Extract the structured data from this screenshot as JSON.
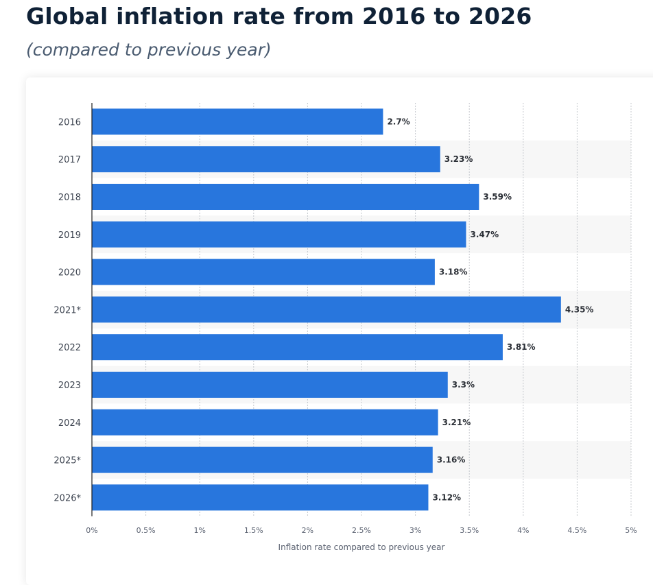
{
  "title": "Global inflation rate from 2016 to 2026",
  "subtitle": "(compared to previous year)",
  "colors": {
    "bar": "#2876dd",
    "band": "#f7f7f7",
    "grid": "#c4c8ce",
    "axis": "#1b1b1b"
  },
  "chart_data": {
    "type": "bar",
    "orientation": "horizontal",
    "categories": [
      "2016",
      "2017",
      "2018",
      "2019",
      "2020",
      "2021*",
      "2022",
      "2023",
      "2024",
      "2025*",
      "2026*"
    ],
    "values": [
      2.7,
      3.23,
      3.59,
      3.47,
      3.18,
      4.35,
      3.81,
      3.3,
      3.21,
      3.16,
      3.12
    ],
    "value_labels": [
      "2.7%",
      "3.23%",
      "3.59%",
      "3.47%",
      "3.18%",
      "4.35%",
      "3.81%",
      "3.3%",
      "3.21%",
      "3.16%",
      "3.12%"
    ],
    "x_ticks": [
      0,
      0.5,
      1,
      1.5,
      2,
      2.5,
      3,
      3.5,
      4,
      4.5,
      5
    ],
    "x_tick_labels": [
      "0%",
      "0.5%",
      "1%",
      "1.5%",
      "2%",
      "2.5%",
      "3%",
      "3.5%",
      "4%",
      "4.5%",
      "5%"
    ],
    "xlim": [
      0,
      5
    ],
    "xlabel": "Inflation rate compared to previous year",
    "ylabel": "",
    "grid": "vertical dotted",
    "legend": "none"
  }
}
